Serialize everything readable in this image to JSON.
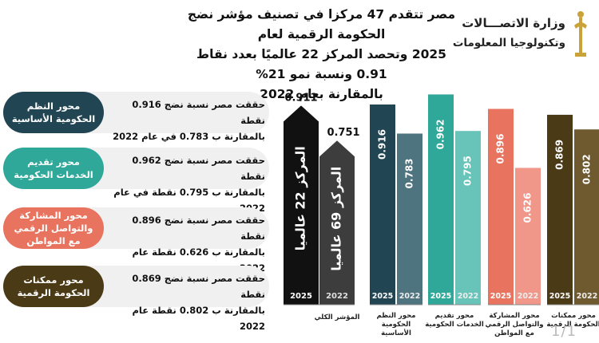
{
  "header": {
    "title_lines": [
      "مصر تتقدم 47 مركزا في تصنيف مؤشر نضج الحكومة الرقمية لعام",
      "2025 وتحصد المركز 22 عالميًا بعدد نقاط 0.91 ونسبة نمو 21%",
      "بالمقارنة بعام 2022"
    ]
  },
  "logo": {
    "line1": "وزارة الاتصـــالات",
    "line2": "وتكنولوجيا المعلومات",
    "icon": "pharaonic-emblem-icon"
  },
  "cards": [
    {
      "label": "محور النظم الحكومية الأساسية",
      "line1": "حققت مصر نسبة نضج 0.916 نقطة",
      "line2": "بالمقارنة ب 0.783 في عام 2022",
      "color": "#214552"
    },
    {
      "label": "محور تقديم الخدمات الحكومية",
      "line1": "حققت مصر نسبة نضج 0.962 نقطة",
      "line2": "بالمقارنة ب 0.795 نقطة في عام 2022",
      "color": "#2fa799"
    },
    {
      "label": "محور المشاركة والتواصل الرقمي مع المواطن",
      "line1": "حققت مصر نسبة نضج 0.896 نقطة",
      "line2": "بالمقارنة ب 0.626 نقطة عام 2022",
      "color": "#e8735e"
    },
    {
      "label": "محور ممكنات الحكومة الرقمية",
      "line1": "حققت مصر نسبة نضج 0.869 نقطة",
      "line2": "بالمقارنة ب 0.802 نقطة عام 2022",
      "color": "#4b3a16"
    }
  ],
  "chart_data": {
    "type": "bar",
    "ylim": [
      0,
      1
    ],
    "overall": {
      "category": "المؤشر الكلي",
      "bars": [
        {
          "year": "2025",
          "value": 0.911,
          "label": "0.911",
          "rank_text": "المركز 22 عالميا",
          "color": "#111111"
        },
        {
          "year": "2022",
          "value": 0.751,
          "label": "0.751",
          "rank_text": "المركز 69 عالميا",
          "color": "#3d3d3d"
        }
      ]
    },
    "categories": [
      "محور النظم الحكومية الأساسية",
      "محور تقديم الخدمات الحكومية",
      "محور المشاركة والتواصل الرقمي مع المواطن",
      "محور ممكنات الحكومة الرقمية"
    ],
    "series": [
      {
        "year": "2025",
        "values": [
          0.916,
          0.962,
          0.896,
          0.869
        ],
        "labels": [
          "0.916",
          "0.962",
          "0.896",
          "0.869"
        ],
        "colors": [
          "#214552",
          "#2fa799",
          "#e8735e",
          "#4b3a16"
        ]
      },
      {
        "year": "2022",
        "values": [
          0.783,
          0.795,
          0.626,
          0.802
        ],
        "labels": [
          "0.783",
          "0.795",
          "0.626",
          "0.802"
        ],
        "colors": [
          "#4e7480",
          "#68c3b8",
          "#f0978a",
          "#6e5a2e"
        ]
      }
    ]
  },
  "page_number": "1/1"
}
